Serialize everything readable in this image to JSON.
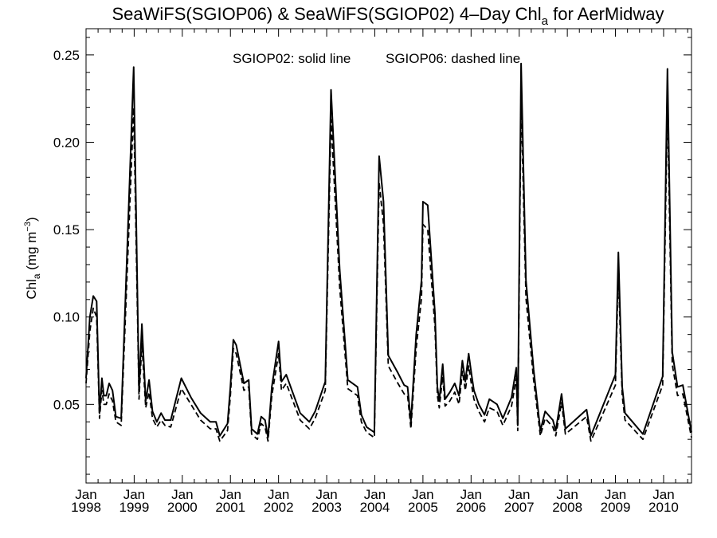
{
  "chart_data": {
    "type": "line",
    "title": "SeaWiFS(SGIOP06) & SeaWiFS(SGIOP02) 4–Day Chl",
    "title_subscript": "a",
    "title_suffix": " for AerMidway",
    "ylabel_main": "Chl",
    "ylabel_subscript": "a",
    "ylabel_unit": " (mg m",
    "ylabel_superscript": "−3",
    "ylabel_close": ")",
    "legend_text_1": "SGIOP02: solid line",
    "legend_text_2": "SGIOP06: dashed line",
    "legend_placement": "top-center",
    "grid": false,
    "xlim": [
      1998.0,
      2010.58
    ],
    "ylim": [
      0.005,
      0.265
    ],
    "y_ticks": [
      0.05,
      0.1,
      0.15,
      0.2,
      0.25
    ],
    "y_tick_labels": [
      "0.05",
      "0.10",
      "0.15",
      "0.20",
      "0.25"
    ],
    "x_ticks": [
      {
        "value": 1998,
        "month": "Jan",
        "year": "1998"
      },
      {
        "value": 1999,
        "month": "Jan",
        "year": "1999"
      },
      {
        "value": 2000,
        "month": "Jan",
        "year": "2000"
      },
      {
        "value": 2001,
        "month": "Jan",
        "year": "2001"
      },
      {
        "value": 2002,
        "month": "Jan",
        "year": "2002"
      },
      {
        "value": 2003,
        "month": "Jan",
        "year": "2003"
      },
      {
        "value": 2004,
        "month": "Jan",
        "year": "2004"
      },
      {
        "value": 2005,
        "month": "Jan",
        "year": "2005"
      },
      {
        "value": 2006,
        "month": "Jan",
        "year": "2006"
      },
      {
        "value": 2007,
        "month": "Jan",
        "year": "2007"
      },
      {
        "value": 2008,
        "month": "Jan",
        "year": "2008"
      },
      {
        "value": 2009,
        "month": "Jan",
        "year": "2009"
      },
      {
        "value": 2010,
        "month": "Jan",
        "year": "2010"
      }
    ],
    "series": [
      {
        "label": "SGIOP02",
        "style": "solid",
        "color": "#000000",
        "points": [
          [
            1998.0,
            0.065
          ],
          [
            1998.08,
            0.1
          ],
          [
            1998.15,
            0.112
          ],
          [
            1998.22,
            0.109
          ],
          [
            1998.28,
            0.045
          ],
          [
            1998.33,
            0.065
          ],
          [
            1998.37,
            0.055
          ],
          [
            1998.42,
            0.055
          ],
          [
            1998.48,
            0.062
          ],
          [
            1998.55,
            0.058
          ],
          [
            1998.62,
            0.043
          ],
          [
            1998.73,
            0.042
          ],
          [
            1998.99,
            0.243
          ],
          [
            1999.1,
            0.058
          ],
          [
            1999.16,
            0.096
          ],
          [
            1999.24,
            0.052
          ],
          [
            1999.31,
            0.064
          ],
          [
            1999.38,
            0.046
          ],
          [
            1999.47,
            0.04
          ],
          [
            1999.56,
            0.045
          ],
          [
            1999.64,
            0.041
          ],
          [
            1999.76,
            0.041
          ],
          [
            1999.98,
            0.065
          ],
          [
            2000.18,
            0.054
          ],
          [
            2000.38,
            0.045
          ],
          [
            2000.58,
            0.04
          ],
          [
            2000.7,
            0.04
          ],
          [
            2000.78,
            0.032
          ],
          [
            2000.94,
            0.039
          ],
          [
            2001.0,
            0.06
          ],
          [
            2001.06,
            0.087
          ],
          [
            2001.12,
            0.084
          ],
          [
            2001.28,
            0.062
          ],
          [
            2001.38,
            0.064
          ],
          [
            2001.44,
            0.036
          ],
          [
            2001.56,
            0.033
          ],
          [
            2001.64,
            0.043
          ],
          [
            2001.72,
            0.041
          ],
          [
            2001.78,
            0.031
          ],
          [
            2001.86,
            0.06
          ],
          [
            2002.0,
            0.086
          ],
          [
            2002.06,
            0.063
          ],
          [
            2002.16,
            0.067
          ],
          [
            2002.45,
            0.045
          ],
          [
            2002.64,
            0.04
          ],
          [
            2002.76,
            0.046
          ],
          [
            2002.97,
            0.063
          ],
          [
            2003.09,
            0.23
          ],
          [
            2003.27,
            0.127
          ],
          [
            2003.44,
            0.064
          ],
          [
            2003.64,
            0.06
          ],
          [
            2003.72,
            0.044
          ],
          [
            2003.83,
            0.037
          ],
          [
            2003.99,
            0.034
          ],
          [
            2004.09,
            0.192
          ],
          [
            2004.18,
            0.166
          ],
          [
            2004.28,
            0.078
          ],
          [
            2004.48,
            0.068
          ],
          [
            2004.61,
            0.061
          ],
          [
            2004.68,
            0.06
          ],
          [
            2004.75,
            0.04
          ],
          [
            2004.86,
            0.09
          ],
          [
            2004.97,
            0.121
          ],
          [
            2005.0,
            0.166
          ],
          [
            2005.1,
            0.164
          ],
          [
            2005.25,
            0.102
          ],
          [
            2005.3,
            0.06
          ],
          [
            2005.34,
            0.052
          ],
          [
            2005.41,
            0.073
          ],
          [
            2005.46,
            0.053
          ],
          [
            2005.56,
            0.057
          ],
          [
            2005.66,
            0.062
          ],
          [
            2005.75,
            0.055
          ],
          [
            2005.82,
            0.075
          ],
          [
            2005.88,
            0.063
          ],
          [
            2005.95,
            0.079
          ],
          [
            2006.01,
            0.067
          ],
          [
            2006.06,
            0.058
          ],
          [
            2006.16,
            0.05
          ],
          [
            2006.28,
            0.044
          ],
          [
            2006.38,
            0.053
          ],
          [
            2006.54,
            0.05
          ],
          [
            2006.66,
            0.042
          ],
          [
            2006.84,
            0.054
          ],
          [
            2006.94,
            0.071
          ],
          [
            2006.97,
            0.038
          ],
          [
            2007.04,
            0.245
          ],
          [
            2007.14,
            0.121
          ],
          [
            2007.3,
            0.07
          ],
          [
            2007.44,
            0.035
          ],
          [
            2007.54,
            0.046
          ],
          [
            2007.7,
            0.041
          ],
          [
            2007.76,
            0.035
          ],
          [
            2007.88,
            0.056
          ],
          [
            2007.96,
            0.036
          ],
          [
            2008.4,
            0.047
          ],
          [
            2008.49,
            0.032
          ],
          [
            2009.0,
            0.067
          ],
          [
            2009.06,
            0.137
          ],
          [
            2009.14,
            0.06
          ],
          [
            2009.2,
            0.045
          ],
          [
            2009.57,
            0.033
          ],
          [
            2009.98,
            0.066
          ],
          [
            2010.08,
            0.242
          ],
          [
            2010.18,
            0.08
          ],
          [
            2010.29,
            0.06
          ],
          [
            2010.4,
            0.061
          ],
          [
            2010.58,
            0.034
          ]
        ]
      },
      {
        "label": "SGIOP06",
        "style": "dashed",
        "color": "#000000",
        "points": [
          [
            1998.0,
            0.062
          ],
          [
            1998.08,
            0.092
          ],
          [
            1998.15,
            0.105
          ],
          [
            1998.22,
            0.1
          ],
          [
            1998.28,
            0.042
          ],
          [
            1998.33,
            0.058
          ],
          [
            1998.37,
            0.05
          ],
          [
            1998.42,
            0.05
          ],
          [
            1998.48,
            0.056
          ],
          [
            1998.55,
            0.052
          ],
          [
            1998.62,
            0.04
          ],
          [
            1998.73,
            0.038
          ],
          [
            1998.99,
            0.22
          ],
          [
            1999.1,
            0.053
          ],
          [
            1999.16,
            0.085
          ],
          [
            1999.24,
            0.048
          ],
          [
            1999.31,
            0.057
          ],
          [
            1999.38,
            0.042
          ],
          [
            1999.47,
            0.037
          ],
          [
            1999.56,
            0.041
          ],
          [
            1999.64,
            0.038
          ],
          [
            1999.76,
            0.037
          ],
          [
            1999.98,
            0.059
          ],
          [
            2000.18,
            0.05
          ],
          [
            2000.38,
            0.041
          ],
          [
            2000.58,
            0.036
          ],
          [
            2000.7,
            0.036
          ],
          [
            2000.78,
            0.029
          ],
          [
            2000.94,
            0.035
          ],
          [
            2001.0,
            0.055
          ],
          [
            2001.06,
            0.082
          ],
          [
            2001.12,
            0.079
          ],
          [
            2001.28,
            0.058
          ],
          [
            2001.38,
            0.06
          ],
          [
            2001.44,
            0.033
          ],
          [
            2001.56,
            0.03
          ],
          [
            2001.64,
            0.039
          ],
          [
            2001.72,
            0.037
          ],
          [
            2001.78,
            0.029
          ],
          [
            2001.86,
            0.055
          ],
          [
            2002.0,
            0.079
          ],
          [
            2002.06,
            0.058
          ],
          [
            2002.16,
            0.062
          ],
          [
            2002.45,
            0.041
          ],
          [
            2002.64,
            0.036
          ],
          [
            2002.76,
            0.042
          ],
          [
            2002.97,
            0.058
          ],
          [
            2003.09,
            0.213
          ],
          [
            2003.27,
            0.117
          ],
          [
            2003.44,
            0.059
          ],
          [
            2003.64,
            0.055
          ],
          [
            2003.72,
            0.04
          ],
          [
            2003.83,
            0.034
          ],
          [
            2003.99,
            0.031
          ],
          [
            2004.09,
            0.177
          ],
          [
            2004.18,
            0.153
          ],
          [
            2004.28,
            0.072
          ],
          [
            2004.48,
            0.062
          ],
          [
            2004.61,
            0.056
          ],
          [
            2004.68,
            0.055
          ],
          [
            2004.75,
            0.036
          ],
          [
            2004.86,
            0.082
          ],
          [
            2004.97,
            0.111
          ],
          [
            2005.0,
            0.153
          ],
          [
            2005.1,
            0.15
          ],
          [
            2005.25,
            0.094
          ],
          [
            2005.3,
            0.055
          ],
          [
            2005.34,
            0.048
          ],
          [
            2005.41,
            0.066
          ],
          [
            2005.46,
            0.049
          ],
          [
            2005.56,
            0.052
          ],
          [
            2005.66,
            0.057
          ],
          [
            2005.75,
            0.05
          ],
          [
            2005.82,
            0.069
          ],
          [
            2005.88,
            0.058
          ],
          [
            2005.95,
            0.072
          ],
          [
            2006.01,
            0.061
          ],
          [
            2006.06,
            0.053
          ],
          [
            2006.16,
            0.046
          ],
          [
            2006.28,
            0.04
          ],
          [
            2006.38,
            0.048
          ],
          [
            2006.54,
            0.046
          ],
          [
            2006.66,
            0.038
          ],
          [
            2006.84,
            0.049
          ],
          [
            2006.94,
            0.065
          ],
          [
            2006.97,
            0.035
          ],
          [
            2007.04,
            0.225
          ],
          [
            2007.14,
            0.111
          ],
          [
            2007.3,
            0.064
          ],
          [
            2007.44,
            0.032
          ],
          [
            2007.54,
            0.042
          ],
          [
            2007.7,
            0.037
          ],
          [
            2007.76,
            0.032
          ],
          [
            2007.88,
            0.051
          ],
          [
            2007.96,
            0.033
          ],
          [
            2008.4,
            0.043
          ],
          [
            2008.49,
            0.029
          ],
          [
            2009.0,
            0.061
          ],
          [
            2009.06,
            0.126
          ],
          [
            2009.14,
            0.055
          ],
          [
            2009.2,
            0.041
          ],
          [
            2009.57,
            0.03
          ],
          [
            2009.98,
            0.061
          ],
          [
            2010.08,
            0.222
          ],
          [
            2010.18,
            0.073
          ],
          [
            2010.29,
            0.055
          ],
          [
            2010.4,
            0.056
          ],
          [
            2010.58,
            0.031
          ]
        ]
      }
    ]
  }
}
